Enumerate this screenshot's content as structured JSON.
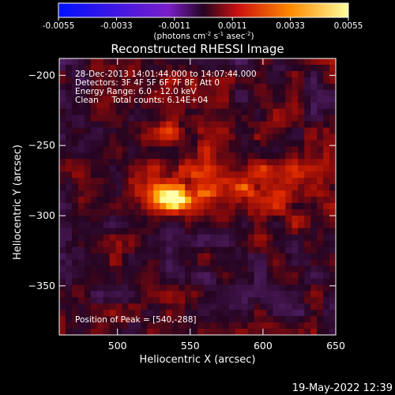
{
  "chart_data": {
    "type": "heatmap",
    "title": "Reconstructed RHESSI Image",
    "xlabel": "Heliocentric X (arcsec)",
    "ylabel": "Heliocentric Y (arcsec)",
    "xlim": [
      460,
      650
    ],
    "ylim": [
      -385,
      -188
    ],
    "x_ticks": [
      500,
      550,
      600,
      650
    ],
    "y_ticks": [
      -200,
      -250,
      -300,
      -350
    ],
    "annotations": [
      "28-Dec-2013 14:01:44.000 to 14:07:44.000",
      "Detectors: 3F 4F 5F 6F 7F 8F, Att 0",
      "Energy Range: 6.0 - 12.0 keV",
      "Clean     Total counts: 6.14E+04"
    ],
    "peak_label": "Position of Peak = [540,-288]",
    "peak": {
      "x": 540,
      "y": -288
    },
    "colorbar": {
      "min": -0.0055,
      "max": 0.0055,
      "ticks": [
        "-0.0055",
        "-0.0033",
        "-0.0011",
        "0.0011",
        "0.0033",
        "0.0055"
      ],
      "unit_label": "(photons cm",
      "unit_exp1": "-2",
      "unit_mid": " s",
      "unit_exp2": "-1",
      "unit_mid2": " asec",
      "unit_exp3": "-2",
      "unit_end": ")"
    },
    "colors": {
      "background": "#000000",
      "axis": "#ffffff"
    }
  },
  "footer": {
    "timestamp": "19-May-2022 12:39"
  }
}
